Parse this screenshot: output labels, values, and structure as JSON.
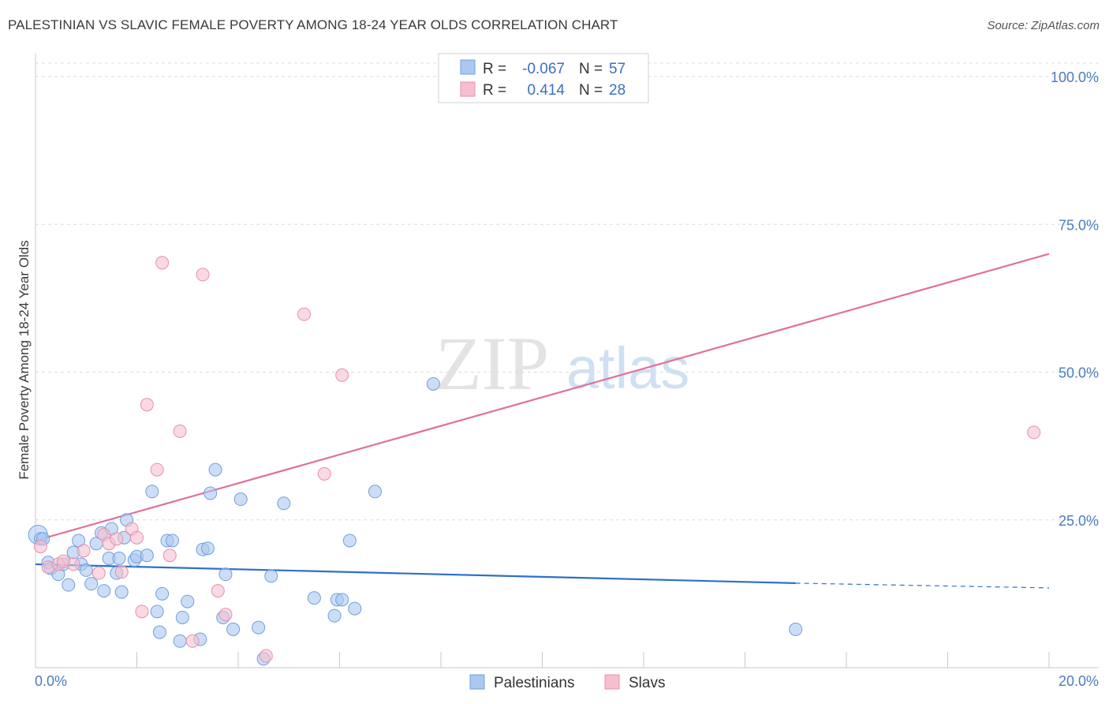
{
  "header": {
    "title": "PALESTINIAN VS SLAVIC FEMALE POVERTY AMONG 18-24 YEAR OLDS CORRELATION CHART",
    "source": "Source: ZipAtlas.com"
  },
  "watermark": {
    "zip": "ZIP",
    "atlas": "atlas"
  },
  "chart_data": {
    "type": "scatter",
    "title": "PALESTINIAN VS SLAVIC FEMALE POVERTY AMONG 18-24 YEAR OLDS CORRELATION CHART",
    "xlabel": "",
    "ylabel": "Female Poverty Among 18-24 Year Olds",
    "xlim": [
      0,
      20
    ],
    "ylim": [
      0,
      100
    ],
    "x_ticks": [
      "0.0%",
      "20.0%"
    ],
    "y_ticks": [
      {
        "value": 25,
        "label": "25.0%"
      },
      {
        "value": 50,
        "label": "50.0%"
      },
      {
        "value": 75,
        "label": "75.0%"
      },
      {
        "value": 100,
        "label": "100.0%"
      }
    ],
    "grid": true,
    "legend_position": "top-center",
    "legend": [
      {
        "r_label": "R =",
        "r_value": "-0.067",
        "n_label": "N =",
        "n_value": "57"
      },
      {
        "r_label": "R =",
        "r_value": "0.414",
        "n_label": "N =",
        "n_value": "28"
      }
    ],
    "series": [
      {
        "name": "Palestinians",
        "color": "#6f9fe0",
        "fill": "#aac8f0",
        "line_color": "#2f6fcc",
        "trend": {
          "x0": 0,
          "y0": 17.5,
          "x1": 15,
          "y1": 14.3,
          "dashed_to_x": 20,
          "dashed_y": 13.5
        },
        "points": [
          [
            0.05,
            22.5
          ],
          [
            0.1,
            21.8
          ],
          [
            0.25,
            17.8
          ],
          [
            0.3,
            16.8
          ],
          [
            0.45,
            15.8
          ],
          [
            0.55,
            17.5
          ],
          [
            0.65,
            14.0
          ],
          [
            0.75,
            19.5
          ],
          [
            0.85,
            21.5
          ],
          [
            0.9,
            17.5
          ],
          [
            1.0,
            16.5
          ],
          [
            1.1,
            14.2
          ],
          [
            1.2,
            21.0
          ],
          [
            1.3,
            22.8
          ],
          [
            1.35,
            13.0
          ],
          [
            1.45,
            18.5
          ],
          [
            1.5,
            23.5
          ],
          [
            1.6,
            16.0
          ],
          [
            1.7,
            12.8
          ],
          [
            1.75,
            22.0
          ],
          [
            1.8,
            25.0
          ],
          [
            1.95,
            18.2
          ],
          [
            2.0,
            18.8
          ],
          [
            2.2,
            19.0
          ],
          [
            2.3,
            29.8
          ],
          [
            2.4,
            9.5
          ],
          [
            2.45,
            6.0
          ],
          [
            2.5,
            12.5
          ],
          [
            2.6,
            21.5
          ],
          [
            2.7,
            21.5
          ],
          [
            2.85,
            4.5
          ],
          [
            2.9,
            8.5
          ],
          [
            3.0,
            11.2
          ],
          [
            3.25,
            4.8
          ],
          [
            3.3,
            20.0
          ],
          [
            3.4,
            20.2
          ],
          [
            3.45,
            29.5
          ],
          [
            3.55,
            33.5
          ],
          [
            3.7,
            8.5
          ],
          [
            3.75,
            15.8
          ],
          [
            3.9,
            6.5
          ],
          [
            4.05,
            28.5
          ],
          [
            4.4,
            6.8
          ],
          [
            4.5,
            1.5
          ],
          [
            4.65,
            15.5
          ],
          [
            4.9,
            27.8
          ],
          [
            5.5,
            11.8
          ],
          [
            5.9,
            8.8
          ],
          [
            5.95,
            11.5
          ],
          [
            6.05,
            11.5
          ],
          [
            6.2,
            21.5
          ],
          [
            6.3,
            10.0
          ],
          [
            6.7,
            29.8
          ],
          [
            7.85,
            48.0
          ],
          [
            15.0,
            6.5
          ],
          [
            0.15,
            21.8
          ],
          [
            1.65,
            18.5
          ]
        ]
      },
      {
        "name": "Slavs",
        "color": "#e890aa",
        "fill": "#f5bfd0",
        "line_color": "#e0709a",
        "trend": {
          "x0": 0,
          "y0": 21.5,
          "x1": 20,
          "y1": 70.0
        },
        "points": [
          [
            0.1,
            20.5
          ],
          [
            0.25,
            17.0
          ],
          [
            0.45,
            17.5
          ],
          [
            0.75,
            17.5
          ],
          [
            0.95,
            19.8
          ],
          [
            1.25,
            16.0
          ],
          [
            1.35,
            22.5
          ],
          [
            1.45,
            21.0
          ],
          [
            1.6,
            21.8
          ],
          [
            1.7,
            16.2
          ],
          [
            1.9,
            23.5
          ],
          [
            2.0,
            22.0
          ],
          [
            2.1,
            9.5
          ],
          [
            2.2,
            44.5
          ],
          [
            2.4,
            33.5
          ],
          [
            2.5,
            68.5
          ],
          [
            2.65,
            19.0
          ],
          [
            2.85,
            40.0
          ],
          [
            3.1,
            4.5
          ],
          [
            3.3,
            66.5
          ],
          [
            3.6,
            13.0
          ],
          [
            3.75,
            9.0
          ],
          [
            4.55,
            2.0
          ],
          [
            5.3,
            59.8
          ],
          [
            5.7,
            32.8
          ],
          [
            6.05,
            49.5
          ],
          [
            19.7,
            39.8
          ],
          [
            0.55,
            18.0
          ]
        ]
      }
    ]
  }
}
